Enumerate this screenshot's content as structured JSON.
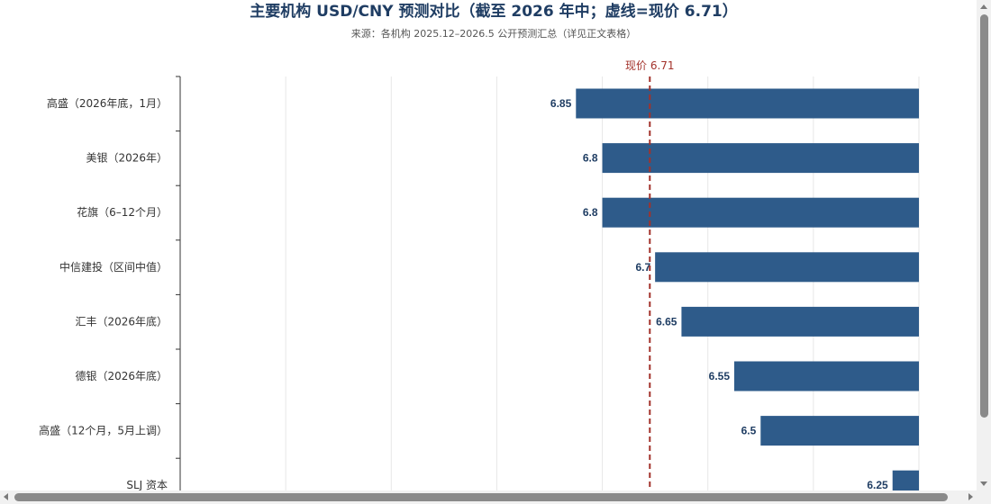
{
  "chart_data": {
    "type": "bar",
    "orientation": "horizontal",
    "title": "主要机构 USD/CNY 预测对比（截至 2026 年中；虚线=现价 6.71）",
    "subtitle": "来源：各机构 2025.12–2026.5 公开预测汇总（详见正文表格）",
    "categories": [
      "高盛（2026年底，1月）",
      "美银（2026年）",
      "花旗（6–12个月）",
      "中信建投（区间中值）",
      "汇丰（2026年底）",
      "德银（2026年底）",
      "高盛（12个月，5月上调）",
      "SLJ 资本"
    ],
    "values": [
      6.85,
      6.8,
      6.8,
      6.7,
      6.65,
      6.55,
      6.5,
      6.25
    ],
    "value_labels": [
      "6.85",
      "6.8",
      "6.8",
      "6.7",
      "6.65",
      "6.55",
      "6.5",
      "6.25"
    ],
    "xlim": [
      7.6,
      6.2
    ],
    "axis_reversed": true,
    "grid_ticks": [
      7.4,
      7.2,
      7.0,
      6.8,
      6.6,
      6.4,
      6.2
    ],
    "reference_line": {
      "value": 6.71,
      "label": "现价 6.71",
      "color": "#a3322b",
      "style": "dashed"
    },
    "bar_color": "#2e5b8a",
    "grid": true,
    "legend": "none"
  },
  "colors": {
    "title": "#1f3d63",
    "bar": "#2e5b8a",
    "reference": "#a3322b",
    "grid": "#e6e6e6"
  }
}
